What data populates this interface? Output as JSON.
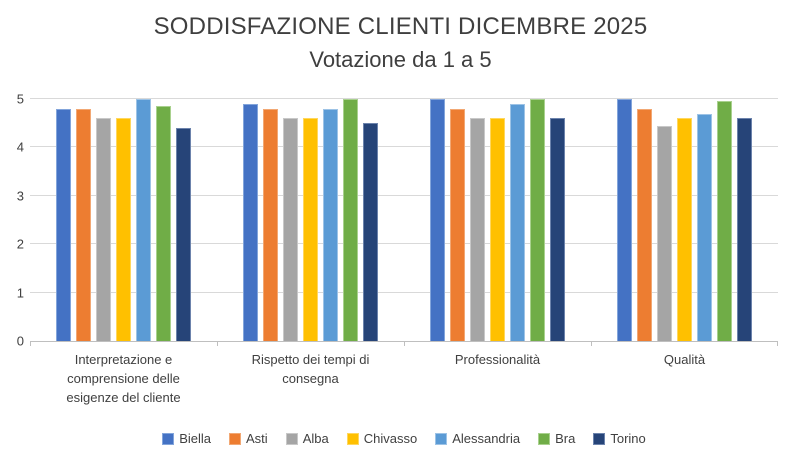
{
  "chart_data": {
    "type": "bar",
    "title": "SODDISFAZIONE CLIENTI DICEMBRE 2025",
    "subtitle": "Votazione da 1 a 5",
    "categories": [
      "Interpretazione e comprensione delle esigenze del cliente",
      "Rispetto dei tempi di consegna",
      "Professionalità",
      "Qualità"
    ],
    "series": [
      {
        "name": "Biella",
        "fill": "#4472C4",
        "edge": "#83A5DB",
        "values": [
          4.8,
          4.9,
          5.0,
          5.0
        ]
      },
      {
        "name": "Asti",
        "fill": "#ED7D31",
        "edge": "#F2A874",
        "values": [
          4.8,
          4.8,
          4.8,
          4.8
        ]
      },
      {
        "name": "Alba",
        "fill": "#A5A5A5",
        "edge": "#C8C8C8",
        "values": [
          4.6,
          4.6,
          4.6,
          4.45
        ]
      },
      {
        "name": "Chivasso",
        "fill": "#FFC000",
        "edge": "#FFD75E",
        "values": [
          4.6,
          4.6,
          4.6,
          4.6
        ]
      },
      {
        "name": "Alessandria",
        "fill": "#5B9BD5",
        "edge": "#9DC3E6",
        "values": [
          5.0,
          4.8,
          4.9,
          4.7
        ]
      },
      {
        "name": "Bra",
        "fill": "#70AD47",
        "edge": "#A9D18E",
        "values": [
          4.85,
          5.0,
          5.0,
          4.95
        ]
      },
      {
        "name": "Torino",
        "fill": "#264478",
        "edge": "#6C83AC",
        "values": [
          4.4,
          4.5,
          4.6,
          4.6
        ]
      }
    ],
    "ylim": [
      0,
      5
    ],
    "yticks": [
      0,
      1,
      2,
      3,
      4,
      5
    ],
    "grid": true,
    "legend_position": "bottom",
    "colors": {
      "grid": "#D9D9D9",
      "axis": "#BFBFBF",
      "title_text": "#3F3F3F",
      "label_text": "#404040"
    }
  }
}
